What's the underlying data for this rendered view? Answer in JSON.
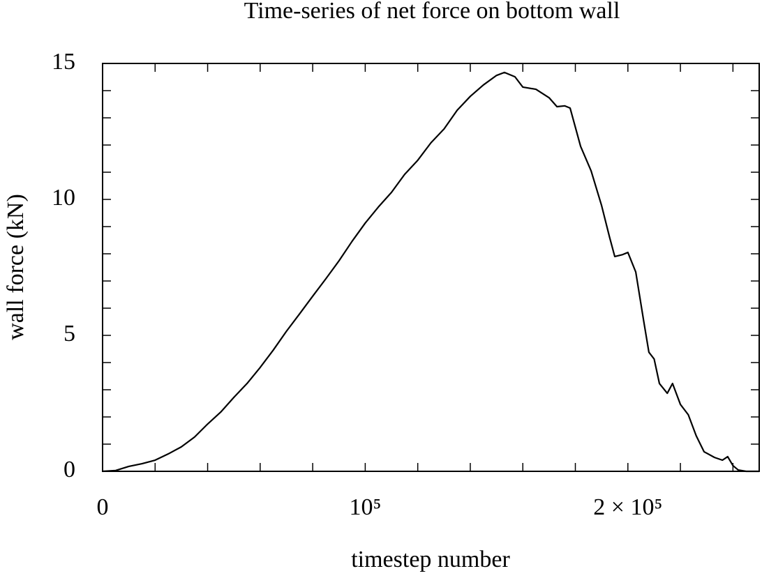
{
  "chart_data": {
    "type": "line",
    "title": "Time-series of net force on bottom wall",
    "x_label": "timestep number",
    "y_label": "wall force (kN)",
    "x": [
      0,
      5000,
      10000,
      15000,
      20000,
      25000,
      30000,
      35000,
      40000,
      45000,
      50000,
      55000,
      60000,
      65000,
      70000,
      75000,
      80000,
      85000,
      90000,
      95000,
      100000,
      105000,
      110000,
      115000,
      120000,
      125000,
      130000,
      135000,
      140000,
      145000,
      150000,
      153000,
      157000,
      160000,
      165000,
      170000,
      173000,
      176000,
      178000,
      182000,
      186000,
      190000,
      193000,
      195000,
      198000,
      200000,
      203000,
      206000,
      208000,
      210000,
      212000,
      215000,
      217000,
      220000,
      223000,
      226000,
      229000,
      233000,
      236000,
      238000,
      240000,
      242000,
      245000,
      250000
    ],
    "series": [
      {
        "name": "wall force",
        "color": "#000000",
        "values": [
          0,
          0.03,
          0.18,
          0.28,
          0.41,
          0.64,
          0.9,
          1.26,
          1.74,
          2.18,
          2.72,
          3.23,
          3.82,
          4.46,
          5.15,
          5.79,
          6.44,
          7.08,
          7.74,
          8.46,
          9.13,
          9.72,
          10.26,
          10.92,
          11.44,
          12.08,
          12.59,
          13.28,
          13.79,
          14.21,
          14.56,
          14.67,
          14.51,
          14.13,
          14.05,
          13.74,
          13.41,
          13.44,
          13.36,
          11.95,
          11.05,
          9.77,
          8.62,
          7.9,
          7.97,
          8.05,
          7.33,
          5.54,
          4.38,
          4.13,
          3.23,
          2.87,
          3.23,
          2.46,
          2.08,
          1.31,
          0.72,
          0.51,
          0.41,
          0.54,
          0.21,
          0.05,
          0,
          0
        ]
      }
    ],
    "xlim": [
      0,
      250000
    ],
    "ylim": [
      0,
      15
    ],
    "xticks": [
      0,
      {
        "value": 100000,
        "label": "10⁵"
      },
      {
        "value": 200000,
        "label": "2 × 10⁵"
      }
    ],
    "yticks": [
      0,
      5,
      10,
      15
    ],
    "xminorticks": [
      20000,
      40000,
      60000,
      80000,
      120000,
      140000,
      160000,
      180000,
      220000,
      240000
    ],
    "yminorticks": [
      1,
      2,
      3,
      4,
      6,
      7,
      8,
      9,
      11,
      12,
      13,
      14
    ],
    "grid": false
  }
}
